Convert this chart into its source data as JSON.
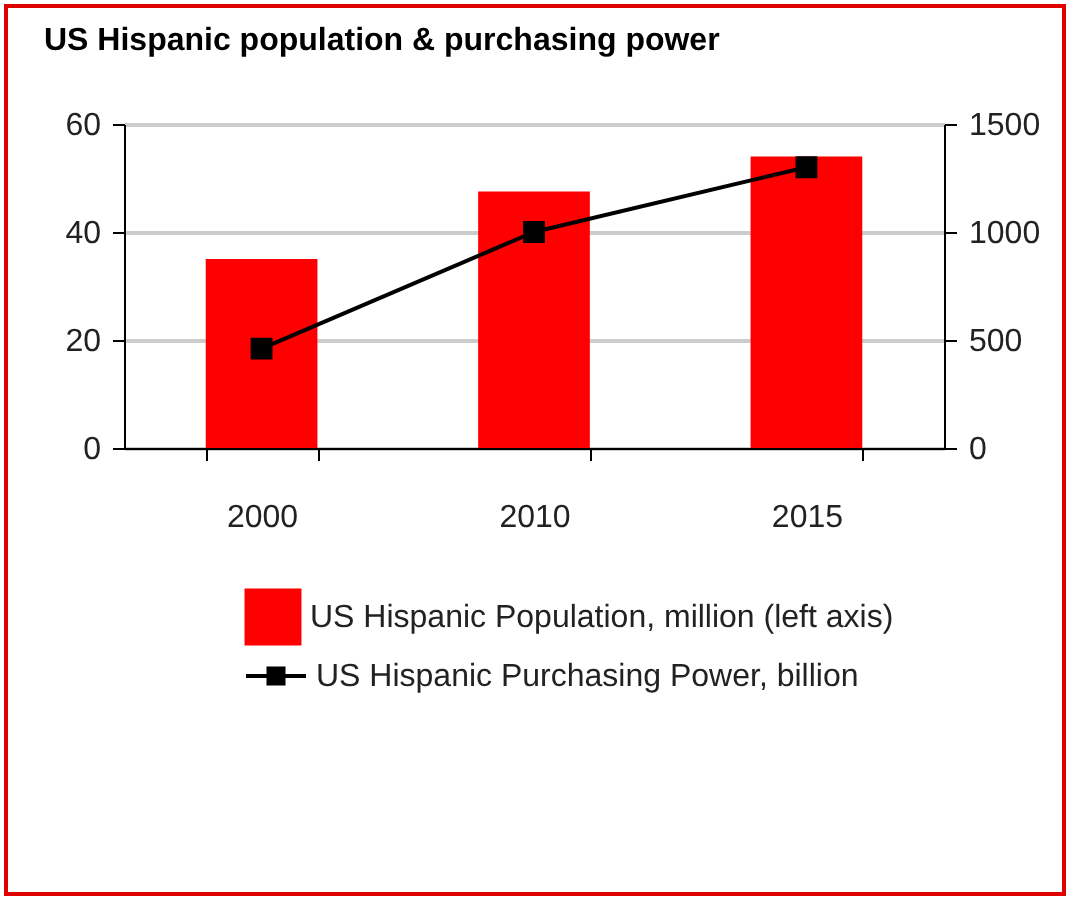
{
  "chart_data": {
    "type": "bar",
    "title": "US Hispanic population & purchasing power",
    "categories": [
      "2000",
      "2010",
      "2015"
    ],
    "series": [
      {
        "name": "US Hispanic Population, million (left axis)",
        "color": "#ff0000",
        "values": [
          35,
          47.5,
          54
        ]
      },
      {
        "name": "US Hispanic Purchasing Power, billion",
        "color": "#000000",
        "type": "line",
        "axis": "y2",
        "marker": "square",
        "values": [
          460,
          1000,
          1300
        ]
      }
    ],
    "ylim": [
      0,
      60
    ],
    "yticks": [
      0,
      20,
      40,
      60
    ],
    "y2lim": [
      0,
      1500
    ],
    "y2ticks": [
      0,
      500,
      1000,
      1500
    ],
    "grid": "y",
    "legend": "bottom"
  }
}
